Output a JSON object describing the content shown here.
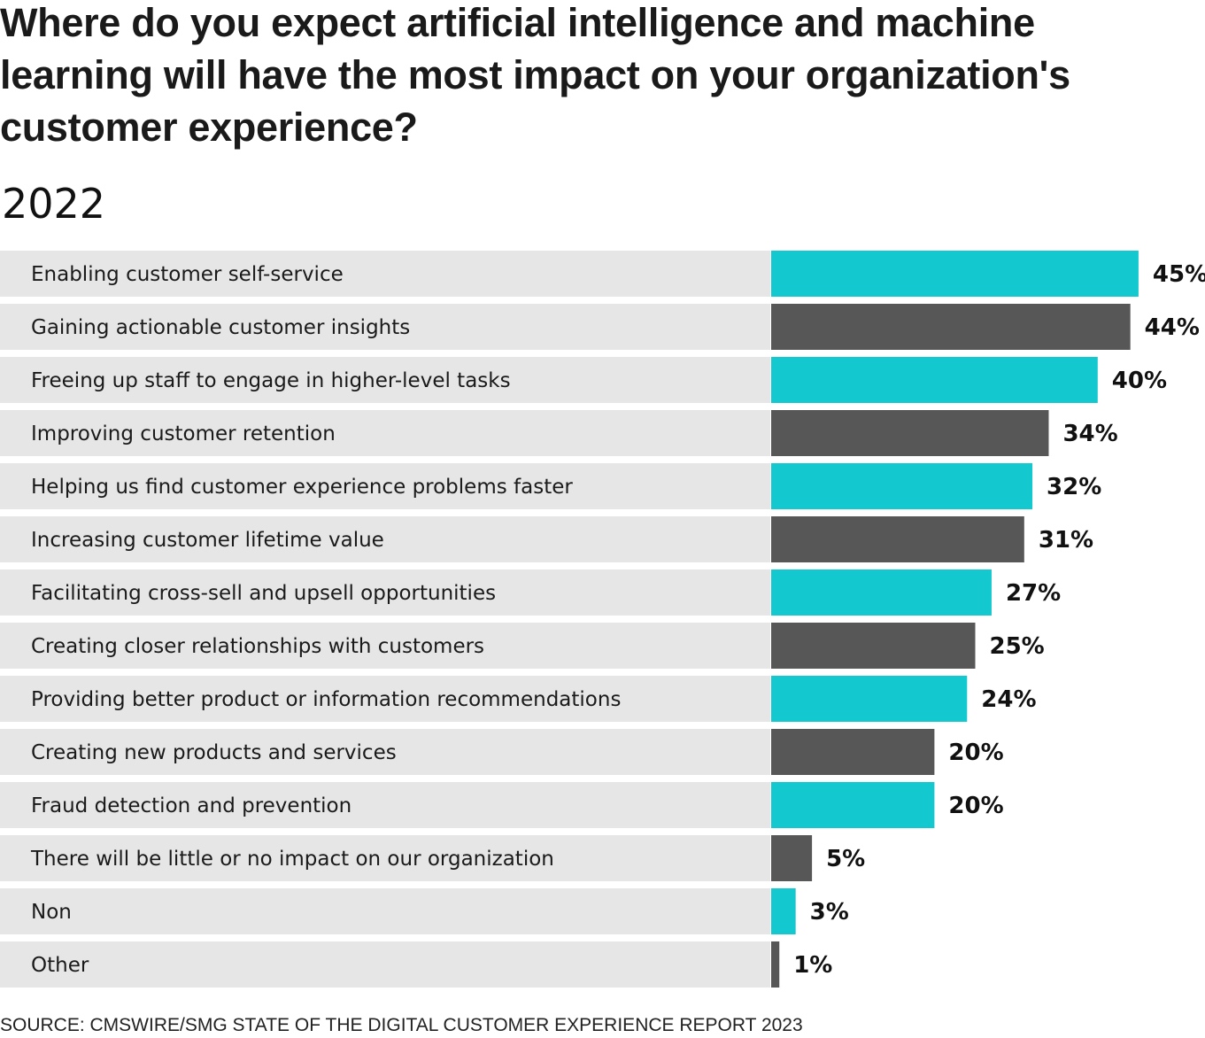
{
  "title": "Where do you expect artificial intelligence and machine learning will have the most impact on your organization's customer experience?",
  "subtitle": "2022",
  "source": "SOURCE: CMSWIRE/SMG STATE OF THE DIGITAL CUSTOMER EXPERIENCE REPORT 2023",
  "colors": {
    "cyan": "#13c8cf",
    "dark": "#575757",
    "row_bg": "#e6e6e6"
  },
  "chart_data": {
    "type": "bar",
    "orientation": "horizontal",
    "title": "Where do you expect artificial intelligence and machine learning will have the most impact on your organization's customer experience?",
    "subtitle": "2022",
    "categories": [
      "Enabling customer self-service",
      "Gaining actionable customer insights",
      "Freeing up staff to engage in higher-level tasks",
      "Improving customer retention",
      "Helping us find customer experience problems faster",
      "Increasing customer lifetime value",
      "Facilitating cross-sell and upsell opportunities",
      "Creating closer relationships with customers",
      "Providing better product or information recommendations",
      "Creating new products and services",
      "Fraud detection and prevention",
      "There will be little or no impact on our organization",
      "Non",
      "Other"
    ],
    "values": [
      45,
      44,
      40,
      34,
      32,
      31,
      27,
      25,
      24,
      20,
      20,
      5,
      3,
      1
    ],
    "value_labels": [
      "45%",
      "44%",
      "40%",
      "34%",
      "32%",
      "31%",
      "27%",
      "25%",
      "24%",
      "20%",
      "20%",
      "5%",
      "3%",
      "1%"
    ],
    "unit": "%",
    "bar_colors_alternating": [
      "#13c8cf",
      "#575757"
    ],
    "xlim": [
      0,
      45
    ],
    "grid": false,
    "legend": "none"
  }
}
